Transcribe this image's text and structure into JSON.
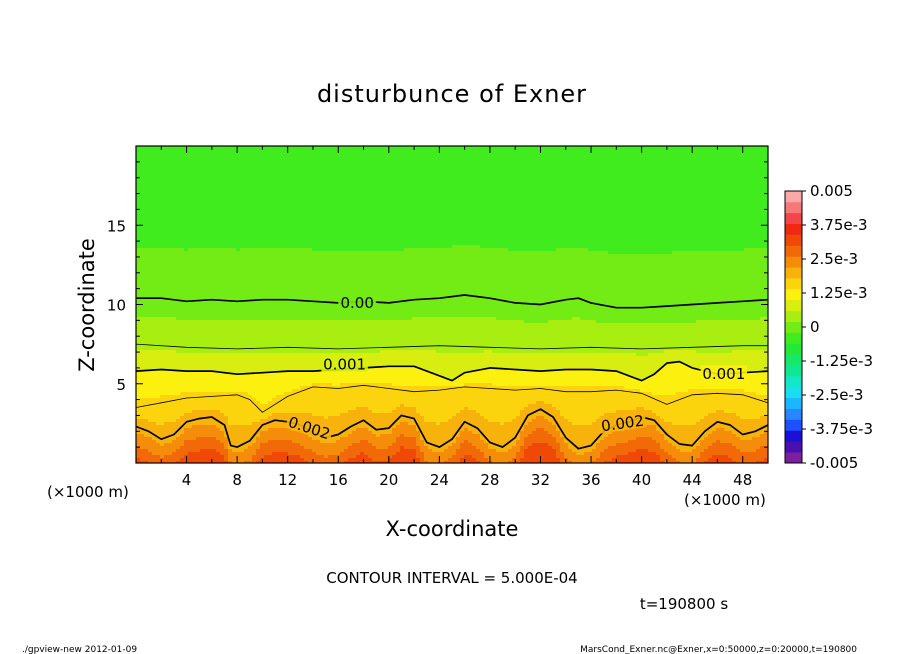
{
  "chart_data": {
    "type": "heatmap",
    "title": "disturbunce of Exner",
    "xlabel": "X-coordinate",
    "ylabel": "Z-coordinate",
    "x_unit": "(×1000 m)",
    "x_unit_right": "(×1000 m)",
    "xlim": [
      0,
      50
    ],
    "ylim": [
      0,
      20
    ],
    "x_ticks": [
      4,
      8,
      12,
      16,
      20,
      24,
      28,
      32,
      36,
      40,
      44,
      48
    ],
    "y_ticks": [
      5,
      10,
      15
    ],
    "contour_interval_text": "CONTOUR INTERVAL = 5.000E-04",
    "time_text": "t=190800 s",
    "contour_labels": [
      {
        "text": "0.00",
        "x": 17.5,
        "z": 10.1
      },
      {
        "text": "0.001",
        "x": 16.5,
        "z": 6.2
      },
      {
        "text": "0.001",
        "x": 46.5,
        "z": 5.6
      },
      {
        "text": "0.002",
        "x": 13.7,
        "z": 2.2
      },
      {
        "text": "0.002",
        "x": 38.5,
        "z": 2.5
      }
    ],
    "contour_lines": [
      {
        "level": 0.0,
        "x": [
          0,
          2,
          4,
          6,
          8,
          10,
          12,
          14,
          16,
          18,
          20,
          22,
          24,
          26,
          28,
          30,
          32,
          34,
          35,
          36,
          38,
          40,
          42,
          44,
          46,
          48,
          50
        ],
        "z": [
          10.4,
          10.4,
          10.2,
          10.3,
          10.2,
          10.3,
          10.3,
          10.2,
          10.1,
          10.2,
          10.1,
          10.3,
          10.4,
          10.6,
          10.4,
          10.1,
          10.0,
          10.3,
          10.4,
          10.1,
          9.8,
          9.8,
          9.9,
          10.0,
          10.1,
          10.2,
          10.3
        ]
      },
      {
        "level": 0.0005,
        "x": [
          0,
          4,
          8,
          12,
          16,
          20,
          24,
          28,
          32,
          36,
          40,
          44,
          48,
          50
        ],
        "z": [
          7.5,
          7.3,
          7.2,
          7.3,
          7.2,
          7.3,
          7.4,
          7.3,
          7.2,
          7.3,
          7.2,
          7.3,
          7.4,
          7.4
        ]
      },
      {
        "level": 0.001,
        "x": [
          0,
          2,
          4,
          6,
          8,
          10,
          12,
          14,
          16,
          18,
          20,
          22,
          24,
          25,
          26,
          28,
          30,
          32,
          34,
          36,
          38,
          40,
          41,
          42,
          43,
          44,
          46,
          48,
          50
        ],
        "z": [
          5.8,
          5.9,
          5.8,
          5.8,
          5.6,
          5.7,
          5.8,
          5.8,
          5.9,
          6.0,
          6.1,
          6.1,
          5.5,
          5.2,
          5.7,
          6.0,
          5.9,
          5.8,
          5.9,
          5.9,
          5.8,
          5.2,
          5.6,
          6.3,
          6.4,
          6.0,
          5.6,
          5.7,
          5.8
        ]
      },
      {
        "level": 0.0015,
        "x": [
          0,
          2,
          4,
          6,
          8,
          9,
          10,
          12,
          14,
          16,
          18,
          20,
          22,
          24,
          26,
          28,
          30,
          32,
          34,
          36,
          38,
          40,
          42,
          44,
          46,
          48,
          50
        ],
        "z": [
          3.5,
          3.8,
          4.1,
          4.2,
          4.3,
          4.0,
          3.2,
          4.2,
          4.8,
          4.7,
          4.9,
          4.7,
          4.5,
          4.6,
          4.8,
          4.7,
          4.6,
          4.7,
          4.5,
          4.5,
          4.6,
          4.4,
          3.7,
          4.3,
          4.4,
          4.3,
          3.8
        ]
      },
      {
        "level": 0.002,
        "x": [
          0,
          1,
          2,
          3,
          4,
          5,
          6,
          7,
          7.5,
          8,
          9,
          10,
          11,
          12,
          13,
          14,
          15,
          16,
          17,
          18,
          19,
          20,
          21,
          22,
          23,
          24,
          25,
          26,
          27,
          28,
          29,
          30,
          31,
          32,
          33,
          34,
          35,
          36,
          37,
          38,
          39,
          40,
          41,
          42,
          43,
          44,
          45,
          46,
          47,
          48,
          49,
          50
        ],
        "z": [
          2.3,
          2.0,
          1.5,
          1.8,
          2.6,
          2.8,
          2.9,
          2.4,
          1.1,
          1.0,
          1.4,
          2.4,
          2.7,
          2.6,
          2.4,
          1.9,
          1.6,
          1.8,
          2.3,
          2.7,
          2.1,
          2.2,
          3.0,
          2.8,
          1.3,
          1.0,
          1.5,
          2.6,
          2.2,
          1.3,
          1.0,
          1.6,
          3.0,
          3.4,
          2.9,
          1.6,
          0.9,
          1.1,
          2.0,
          2.4,
          2.6,
          2.9,
          2.7,
          1.8,
          1.2,
          1.1,
          2.0,
          2.6,
          2.4,
          1.8,
          2.0,
          2.4
        ]
      }
    ],
    "colorbar": {
      "labels": [
        "0.005",
        "3.75e-3",
        "2.5e-3",
        "1.25e-3",
        "0",
        "-1.25e-3",
        "-2.5e-3",
        "-3.75e-3",
        "-0.005"
      ],
      "colors": [
        "#7a1fa0",
        "#4b0fb0",
        "#1a10d8",
        "#1e50ff",
        "#2a86ff",
        "#1ab6ff",
        "#19ddf0",
        "#12e8c8",
        "#10e890",
        "#18e868",
        "#22e838",
        "#40ec1e",
        "#72ec14",
        "#a8ee10",
        "#d8ee10",
        "#fcf00e",
        "#fbd40e",
        "#f8b20c",
        "#f58c0a",
        "#f26a08",
        "#f04806",
        "#f02a12",
        "#f2464a",
        "#f67878",
        "#fca8a8"
      ],
      "colors_order": "bottom_to_top"
    }
  },
  "footer": {
    "left": "./gpview-new   2012-01-09",
    "right": "MarsCond_Exner.nc@Exner,x=0:50000,z=0:20000,t=190800"
  }
}
